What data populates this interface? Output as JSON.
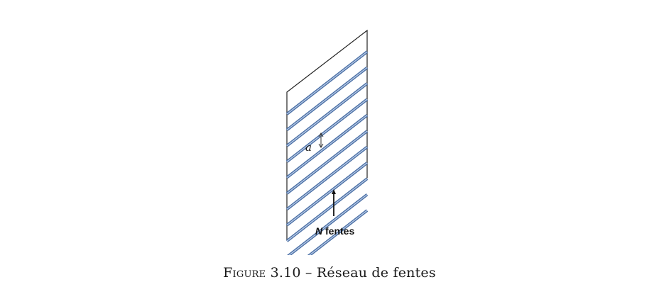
{
  "figure": {
    "slit_color": "#4a6fa5",
    "slit_core_color": "#b9cbe6",
    "slit_count": 11,
    "spacing_label": "a",
    "count_label_symbol": "N",
    "count_label_text": " fentes"
  },
  "caption": {
    "prefix": "Figure",
    "number": "3.10",
    "separator": "–",
    "text": "Réseau de fentes"
  }
}
